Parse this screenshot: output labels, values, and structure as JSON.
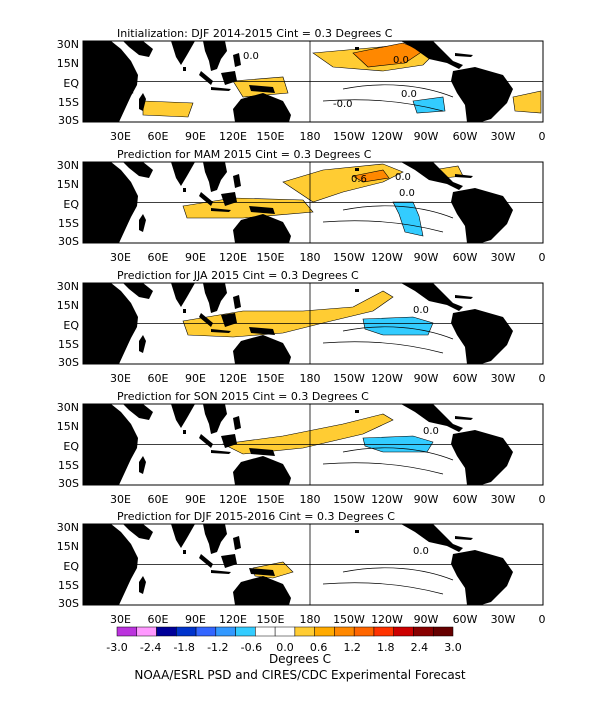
{
  "panels": [
    {
      "title": "Initialization: DJF 2014-2015  Cint = 0.3 Degrees C",
      "contour_labels": [
        "0.0",
        "0.0",
        "-0.0",
        "0.0"
      ]
    },
    {
      "title": "Prediction for MAM 2015  Cint = 0.3 Degrees C",
      "contour_labels": [
        "0.0",
        "0.6",
        "0.0"
      ]
    },
    {
      "title": "Prediction for JJA 2015  Cint = 0.3 Degrees C",
      "contour_labels": [
        "0.0"
      ]
    },
    {
      "title": "Prediction for SON 2015  Cint = 0.3 Degrees C",
      "contour_labels": [
        "0.0"
      ]
    },
    {
      "title": "Prediction for DJF 2015-2016  Cint = 0.3 Degrees C",
      "contour_labels": [
        "0.0"
      ]
    }
  ],
  "lat_labels": [
    "30N",
    "15N",
    "EQ",
    "15S",
    "30S"
  ],
  "lon_labels": [
    "30E",
    "60E",
    "90E",
    "120E",
    "150E",
    "180",
    "150W",
    "120W",
    "90W",
    "60W",
    "30W",
    "0"
  ],
  "colorbar": {
    "colors": [
      "#bb33dd",
      "#ff99ff",
      "#000099",
      "#0033cc",
      "#3366ff",
      "#3399ff",
      "#33ccff",
      "#ffffff",
      "#ffffff",
      "#ffcc33",
      "#ffaa00",
      "#ff8800",
      "#ff6600",
      "#ff3300",
      "#cc0000",
      "#880000",
      "#660000"
    ],
    "tick_labels": [
      "-3.0",
      "-2.4",
      "-1.8",
      "-1.2",
      "-0.6",
      "0.0",
      "0.6",
      "1.2",
      "1.8",
      "2.4",
      "3.0"
    ],
    "unit_label": "Degrees C"
  },
  "footer": "NOAA/ESRL PSD and CIRES/CDC Experimental Forecast",
  "colors": {
    "land": "#000000",
    "warm_anomaly": "#ffcc33",
    "warm_anomaly_strong": "#ff8800",
    "cold_anomaly": "#33ccff"
  }
}
